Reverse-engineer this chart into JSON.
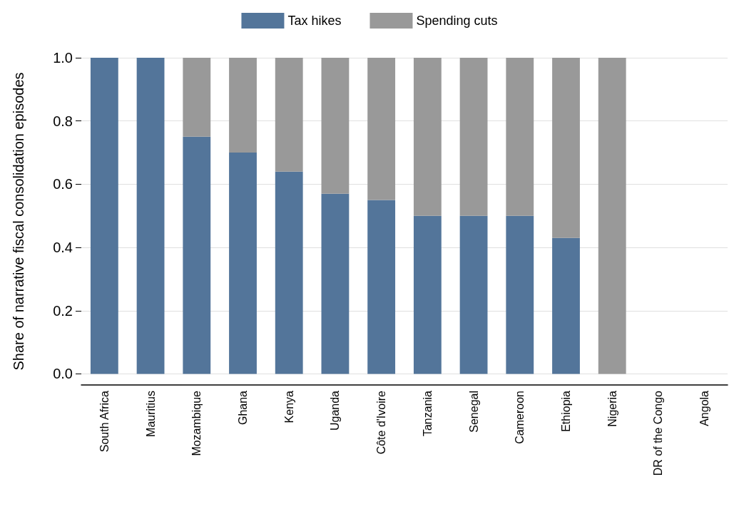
{
  "chart_data": {
    "type": "bar",
    "stacked": true,
    "ylabel": "Share of narrative fiscal consolidation episodes",
    "categories": [
      "South Africa",
      "Mauritius",
      "Mozambique",
      "Ghana",
      "Kenya",
      "Uganda",
      "Côte d'Ivoire",
      "Tanzania",
      "Senegal",
      "Cameroon",
      "Ethiopia",
      "Nigeria",
      "DR of the Congo",
      "Angola"
    ],
    "series": [
      {
        "name": "Tax hikes",
        "color": "#53759a",
        "values": [
          1,
          1,
          0.75,
          0.7,
          0.64,
          0.57,
          0.55,
          0.5,
          0.5,
          0.5,
          0.43,
          0,
          0,
          0
        ]
      },
      {
        "name": "Spending cuts",
        "color": "#999999",
        "values": [
          0,
          0,
          0.25,
          0.3,
          0.36,
          0.43,
          0.45,
          0.5,
          0.5,
          0.5,
          0.57,
          1,
          0,
          0
        ]
      }
    ],
    "ylim": [
      -0.035,
      1
    ],
    "yticks": [
      {
        "value": 0,
        "label": "0.0"
      },
      {
        "value": 0.2,
        "label": "0.2"
      },
      {
        "value": 0.4,
        "label": "0.4"
      },
      {
        "value": 0.6,
        "label": "0.6"
      },
      {
        "value": 0.8,
        "label": "0.8"
      },
      {
        "value": 1,
        "label": "1.0"
      }
    ],
    "grid": "y",
    "legend": "top"
  }
}
